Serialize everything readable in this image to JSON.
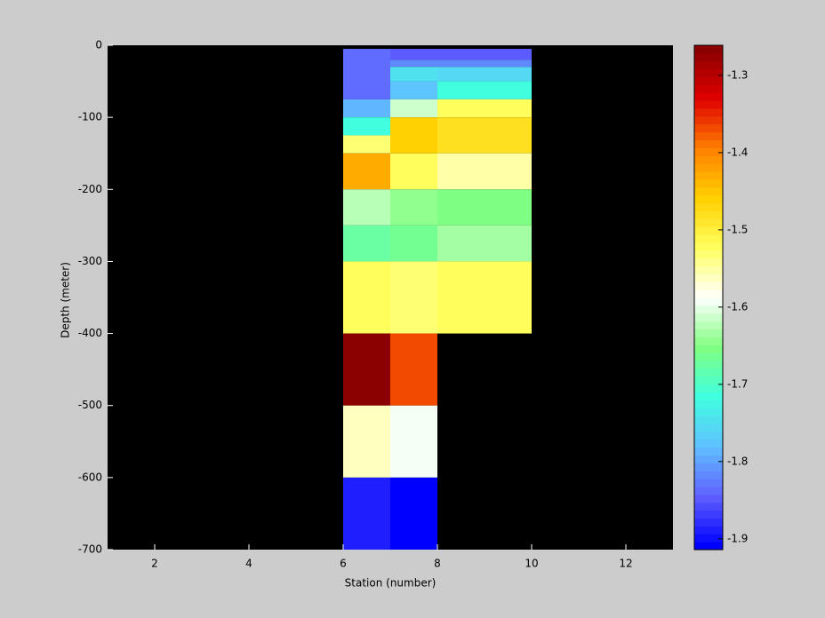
{
  "chart_data": {
    "type": "heatmap",
    "xlabel": "Station (number)",
    "ylabel": "Depth (meter)",
    "xlim": [
      1,
      13
    ],
    "xticks": [
      2,
      4,
      6,
      8,
      10,
      12
    ],
    "ylim": [
      -700,
      0
    ],
    "yticks": [
      -700,
      -600,
      -500,
      -400,
      -300,
      -200,
      -100,
      0
    ],
    "clim": [
      -1.914,
      -1.261
    ],
    "cticks": [
      -1.9,
      -1.8,
      -1.7,
      -1.6,
      -1.5,
      -1.4,
      -1.3
    ],
    "colormap": [
      "#0000ff",
      "#6060ff",
      "#60c0ff",
      "#40ffe0",
      "#80ff80",
      "#ffffff",
      "#ffff60",
      "#ffd000",
      "#ff8000",
      "#e00000",
      "#8b0000"
    ],
    "colormap_levels": 64,
    "background": "#000000",
    "cells": [
      {
        "x": [
          6,
          7
        ],
        "y": [
          -5,
          -75
        ],
        "value": -1.84
      },
      {
        "x": [
          6,
          7
        ],
        "y": [
          -75,
          -100
        ],
        "value": -1.79
      },
      {
        "x": [
          6,
          7
        ],
        "y": [
          -100,
          -125
        ],
        "value": -1.72
      },
      {
        "x": [
          6,
          7
        ],
        "y": [
          -125,
          -150
        ],
        "value": -1.53
      },
      {
        "x": [
          6,
          7
        ],
        "y": [
          -150,
          -200
        ],
        "value": -1.43
      },
      {
        "x": [
          6,
          7
        ],
        "y": [
          -200,
          -250
        ],
        "value": -1.62
      },
      {
        "x": [
          6,
          7
        ],
        "y": [
          -250,
          -300
        ],
        "value": -1.67
      },
      {
        "x": [
          6,
          7
        ],
        "y": [
          -300,
          -400
        ],
        "value": -1.52
      },
      {
        "x": [
          6,
          7
        ],
        "y": [
          -400,
          -500
        ],
        "value": -1.27
      },
      {
        "x": [
          6,
          7
        ],
        "y": [
          -500,
          -600
        ],
        "value": -1.56
      },
      {
        "x": [
          6,
          7
        ],
        "y": [
          -600,
          -700
        ],
        "value": -1.89
      },
      {
        "x": [
          7,
          8
        ],
        "y": [
          -5,
          -20
        ],
        "value": -1.85
      },
      {
        "x": [
          7,
          8
        ],
        "y": [
          -20,
          -30
        ],
        "value": -1.82
      },
      {
        "x": [
          7,
          8
        ],
        "y": [
          -30,
          -50
        ],
        "value": -1.75
      },
      {
        "x": [
          7,
          8
        ],
        "y": [
          -50,
          -75
        ],
        "value": -1.78
      },
      {
        "x": [
          7,
          8
        ],
        "y": [
          -75,
          -100
        ],
        "value": -1.61
      },
      {
        "x": [
          7,
          8
        ],
        "y": [
          -100,
          -150
        ],
        "value": -1.46
      },
      {
        "x": [
          7,
          8
        ],
        "y": [
          -150,
          -200
        ],
        "value": -1.52
      },
      {
        "x": [
          7,
          8
        ],
        "y": [
          -200,
          -250
        ],
        "value": -1.64
      },
      {
        "x": [
          7,
          8
        ],
        "y": [
          -250,
          -300
        ],
        "value": -1.66
      },
      {
        "x": [
          7,
          8
        ],
        "y": [
          -300,
          -400
        ],
        "value": -1.53
      },
      {
        "x": [
          7,
          8
        ],
        "y": [
          -400,
          -500
        ],
        "value": -1.37
      },
      {
        "x": [
          7,
          8
        ],
        "y": [
          -500,
          -600
        ],
        "value": -1.59
      },
      {
        "x": [
          7,
          8
        ],
        "y": [
          -600,
          -700
        ],
        "value": -1.91
      },
      {
        "x": [
          8,
          10
        ],
        "y": [
          -5,
          -20
        ],
        "value": -1.85
      },
      {
        "x": [
          8,
          10
        ],
        "y": [
          -20,
          -30
        ],
        "value": -1.82
      },
      {
        "x": [
          8,
          10
        ],
        "y": [
          -30,
          -50
        ],
        "value": -1.76
      },
      {
        "x": [
          8,
          10
        ],
        "y": [
          -50,
          -75
        ],
        "value": -1.72
      },
      {
        "x": [
          8,
          10
        ],
        "y": [
          -75,
          -100
        ],
        "value": -1.52
      },
      {
        "x": [
          8,
          10
        ],
        "y": [
          -100,
          -150
        ],
        "value": -1.48
      },
      {
        "x": [
          8,
          10
        ],
        "y": [
          -150,
          -200
        ],
        "value": -1.55
      },
      {
        "x": [
          8,
          10
        ],
        "y": [
          -200,
          -250
        ],
        "value": -1.65
      },
      {
        "x": [
          8,
          10
        ],
        "y": [
          -250,
          -300
        ],
        "value": -1.63
      },
      {
        "x": [
          8,
          10
        ],
        "y": [
          -300,
          -400
        ],
        "value": -1.52
      }
    ]
  }
}
